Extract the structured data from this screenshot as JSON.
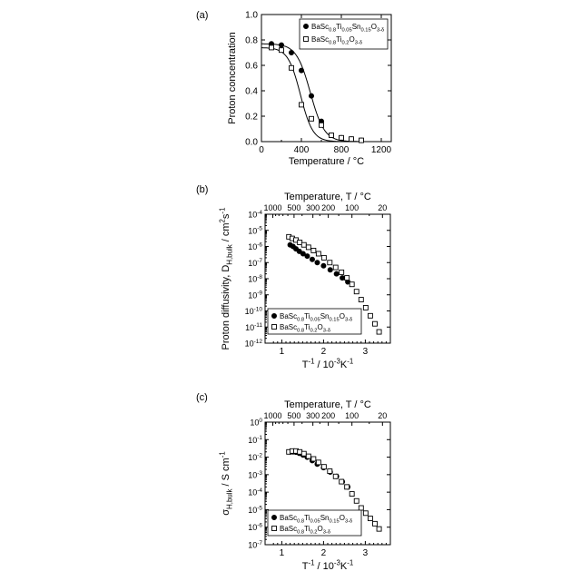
{
  "chart_data": [
    {
      "panel": "(a)",
      "type": "scatter",
      "xlabel": "Temperature / °C",
      "ylabel": "Proton concentration",
      "xlim": [
        0,
        1300
      ],
      "ylim": [
        0,
        1.0
      ],
      "xticks": [
        "0",
        "400",
        "800",
        "1200"
      ],
      "yticks": [
        "0.0",
        "0.2",
        "0.4",
        "0.6",
        "0.8",
        "1.0"
      ],
      "legend_position": "top-right",
      "series": [
        {
          "name_base": "BaSc",
          "name_sub1": "0.8",
          "name_mid1": "Ti",
          "name_sub2": "0.05",
          "name_mid2": "Sn",
          "name_sub3": "0.15",
          "name_mid3": "O",
          "name_sub4": "3-δ",
          "marker": "filled-circle",
          "x": [
            100,
            200,
            300,
            400,
            500,
            600,
            700,
            800,
            900,
            1000
          ],
          "y": [
            0.77,
            0.76,
            0.7,
            0.56,
            0.36,
            0.16,
            0.05,
            0.03,
            0.02,
            0.01
          ]
        },
        {
          "name_base": "BaSc",
          "name_sub1": "0.8",
          "name_mid1": "Ti",
          "name_sub2": "0.2",
          "name_mid2": "O",
          "name_sub3": "3-δ",
          "marker": "open-square",
          "x": [
            100,
            200,
            300,
            400,
            500,
            600,
            700,
            800,
            900,
            1000
          ],
          "y": [
            0.74,
            0.72,
            0.58,
            0.29,
            0.18,
            0.13,
            0.05,
            0.03,
            0.02,
            0.01
          ]
        }
      ]
    },
    {
      "panel": "(b)",
      "type": "scatter",
      "scale": "log-y",
      "xlabel_base": "T",
      "xlabel_sup1": "-1",
      "xlabel_mid": " / 10",
      "xlabel_sup2": "-3",
      "xlabel_end": "K",
      "xlabel_sup3": "-1",
      "ylabel_base": "Proton diffusivity, D",
      "ylabel_sub": "H,bulk",
      "ylabel_mid": " / cm",
      "ylabel_sup1": "2",
      "ylabel_end": "s",
      "ylabel_sup2": "-1",
      "top_axis_label": "Temperature, T / °C",
      "top_ticks": [
        "1000",
        "500",
        "300",
        "200",
        "100",
        "20"
      ],
      "xlim": [
        0.6,
        3.6
      ],
      "ylim_exp": [
        -12,
        -4
      ],
      "xticks": [
        "1",
        "2",
        "3"
      ],
      "legend_position": "bottom-left",
      "series": [
        {
          "name_base": "BaSc",
          "name_sub1": "0.8",
          "name_mid1": "Ti",
          "name_sub2": "0.05",
          "name_mid2": "Sn",
          "name_sub3": "0.15",
          "name_mid3": "O",
          "name_sub4": "3-δ",
          "marker": "filled-circle",
          "x": [
            1.2,
            1.27,
            1.34,
            1.42,
            1.51,
            1.61,
            1.73,
            1.85,
            2.0,
            2.16,
            2.31,
            2.45,
            2.58
          ],
          "log10_y": [
            -5.9,
            -6.0,
            -6.15,
            -6.3,
            -6.45,
            -6.6,
            -6.8,
            -7.0,
            -7.2,
            -7.45,
            -7.7,
            -7.95,
            -8.2
          ]
        },
        {
          "name_base": "BaSc",
          "name_sub1": "0.8",
          "name_mid1": "Ti",
          "name_sub2": "0.2",
          "name_mid2": "O",
          "name_sub3": "3-δ",
          "marker": "open-square",
          "x": [
            1.17,
            1.25,
            1.34,
            1.43,
            1.53,
            1.64,
            1.76,
            1.88,
            2.01,
            2.15,
            2.29,
            2.43,
            2.56,
            2.68,
            2.79,
            2.9,
            3.01,
            3.12,
            3.23,
            3.33
          ],
          "log10_y": [
            -5.4,
            -5.5,
            -5.6,
            -5.75,
            -5.9,
            -6.05,
            -6.25,
            -6.45,
            -6.7,
            -7.0,
            -7.3,
            -7.6,
            -7.95,
            -8.35,
            -8.8,
            -9.3,
            -9.8,
            -10.3,
            -10.8,
            -11.3
          ]
        }
      ]
    },
    {
      "panel": "(c)",
      "type": "scatter",
      "scale": "log-y",
      "xlabel_base": "T",
      "xlabel_sup1": "-1",
      "xlabel_mid": " / 10",
      "xlabel_sup2": "-3",
      "xlabel_end": "K",
      "xlabel_sup3": "-1",
      "ylabel_base": "σ",
      "ylabel_sub": "H,bulk",
      "ylabel_mid": " / S cm",
      "ylabel_sup1": "-1",
      "top_axis_label": "Temperature, T / °C",
      "top_ticks": [
        "1000",
        "500",
        "300",
        "200",
        "100",
        "20"
      ],
      "xlim": [
        0.6,
        3.6
      ],
      "ylim_exp": [
        -7,
        0
      ],
      "xticks": [
        "1",
        "2",
        "3"
      ],
      "legend_position": "bottom-left",
      "series": [
        {
          "name_base": "BaSc",
          "name_sub1": "0.8",
          "name_mid1": "Ti",
          "name_sub2": "0.05",
          "name_mid2": "Sn",
          "name_sub3": "0.15",
          "name_mid3": "O",
          "name_sub4": "3-δ",
          "marker": "filled-circle",
          "x": [
            1.2,
            1.27,
            1.34,
            1.42,
            1.51,
            1.61,
            1.73,
            1.85,
            2.0,
            2.16,
            2.31,
            2.45,
            2.58
          ],
          "log10_y": [
            -1.7,
            -1.7,
            -1.72,
            -1.78,
            -1.88,
            -2.0,
            -2.2,
            -2.4,
            -2.6,
            -2.85,
            -3.1,
            -3.4,
            -3.7
          ]
        },
        {
          "name_base": "BaSc",
          "name_sub1": "0.8",
          "name_mid1": "Ti",
          "name_sub2": "0.2",
          "name_mid2": "O",
          "name_sub3": "3-δ",
          "marker": "open-square",
          "x": [
            1.17,
            1.25,
            1.34,
            1.43,
            1.53,
            1.64,
            1.76,
            1.88,
            2.01,
            2.15,
            2.29,
            2.43,
            2.56,
            2.68,
            2.79,
            2.9,
            3.01,
            3.12,
            3.23,
            3.33
          ],
          "log10_y": [
            -1.7,
            -1.65,
            -1.65,
            -1.7,
            -1.8,
            -1.95,
            -2.1,
            -2.3,
            -2.55,
            -2.8,
            -3.1,
            -3.4,
            -3.7,
            -4.1,
            -4.5,
            -4.9,
            -5.2,
            -5.5,
            -5.8,
            -6.1
          ]
        }
      ]
    }
  ]
}
